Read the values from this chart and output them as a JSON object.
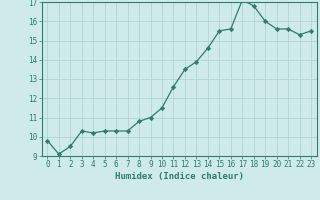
{
  "xlabel": "Humidex (Indice chaleur)",
  "x": [
    0,
    1,
    2,
    3,
    4,
    5,
    6,
    7,
    8,
    9,
    10,
    11,
    12,
    13,
    14,
    15,
    16,
    17,
    18,
    19,
    20,
    21,
    22,
    23
  ],
  "y": [
    9.8,
    9.1,
    9.5,
    10.3,
    10.2,
    10.3,
    10.3,
    10.3,
    10.8,
    11.0,
    11.5,
    12.6,
    13.5,
    13.9,
    14.6,
    15.5,
    15.6,
    17.1,
    16.8,
    16.0,
    15.6,
    15.6,
    15.3,
    15.5
  ],
  "ylim": [
    9,
    17
  ],
  "yticks": [
    9,
    10,
    11,
    12,
    13,
    14,
    15,
    16,
    17
  ],
  "xticks": [
    0,
    1,
    2,
    3,
    4,
    5,
    6,
    7,
    8,
    9,
    10,
    11,
    12,
    13,
    14,
    15,
    16,
    17,
    18,
    19,
    20,
    21,
    22,
    23
  ],
  "line_color": "#2e7d6d",
  "marker_color": "#2e7d6d",
  "bg_color": "#ceeaea",
  "grid_color": "#aacfcf",
  "spine_color": "#2e7d6d",
  "xlabel_fontsize": 6.5,
  "tick_fontsize": 5.5
}
